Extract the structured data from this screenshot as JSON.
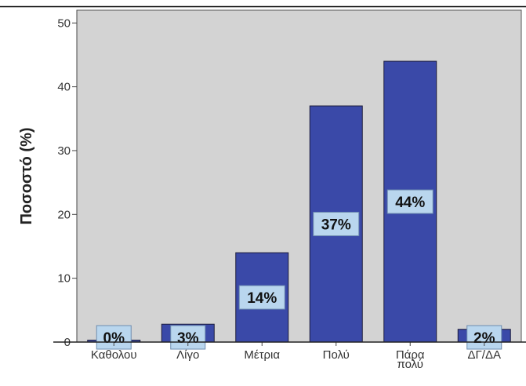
{
  "chart_data": {
    "type": "bar",
    "ylabel": "Ποσοστό (%)",
    "xlabel": "",
    "ylim": [
      0,
      52
    ],
    "yticks": [
      0,
      10,
      20,
      30,
      40,
      50
    ],
    "categories": [
      [
        "Καθολου"
      ],
      [
        "Λίγο"
      ],
      [
        "Μέτρια"
      ],
      [
        "Πολύ"
      ],
      [
        "Πάρα",
        "πολύ"
      ],
      [
        "ΔΓ/ΔΑ"
      ]
    ],
    "values": [
      0.3,
      2.8,
      14,
      37,
      44,
      2
    ],
    "data_labels": [
      "0%",
      "3%",
      "14%",
      "37%",
      "44%",
      "2%"
    ],
    "colors": {
      "plot_background": "#d3d3d3",
      "bar_fill": "#3a49a8",
      "bar_stroke": "#1c1c3c",
      "label_box": "#b9d6ee"
    }
  }
}
